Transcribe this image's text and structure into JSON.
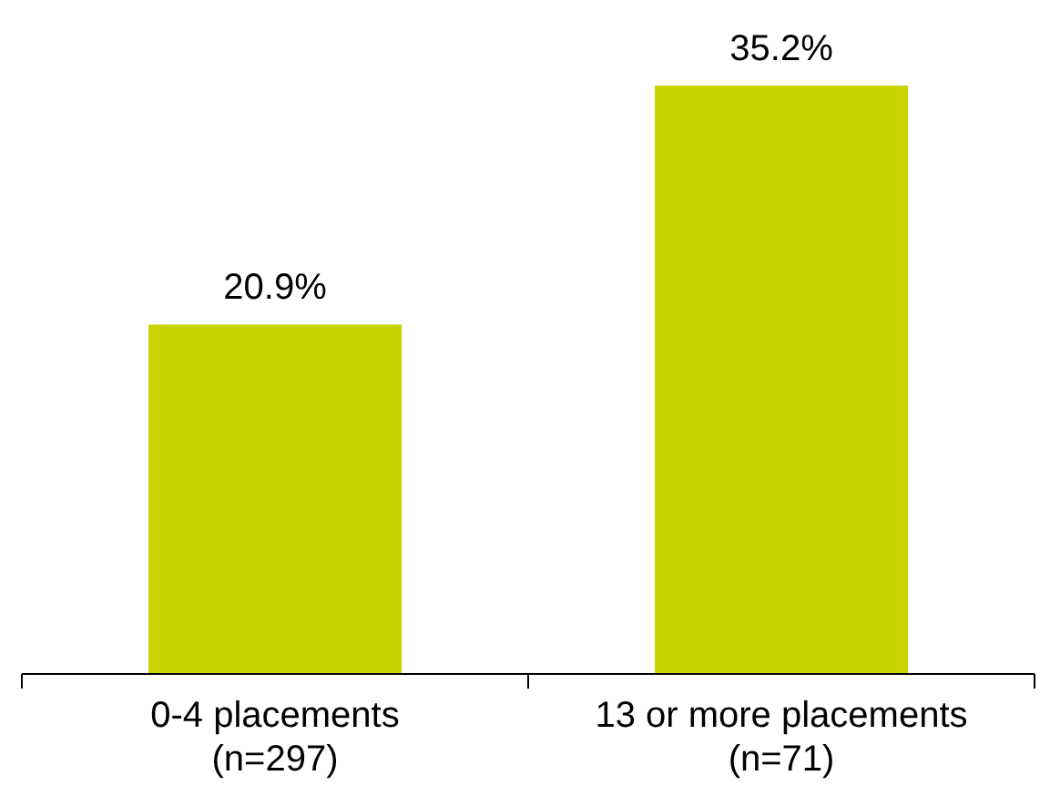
{
  "chart_data": {
    "type": "bar",
    "categories": [
      "0-4 placements\n(n=297)",
      "13 or more placements\n(n=71)"
    ],
    "values": [
      20.9,
      35.2
    ],
    "color": "#c8d400",
    "data_labels": true,
    "value_labels": [
      "20.9%",
      "35.2%"
    ]
  }
}
